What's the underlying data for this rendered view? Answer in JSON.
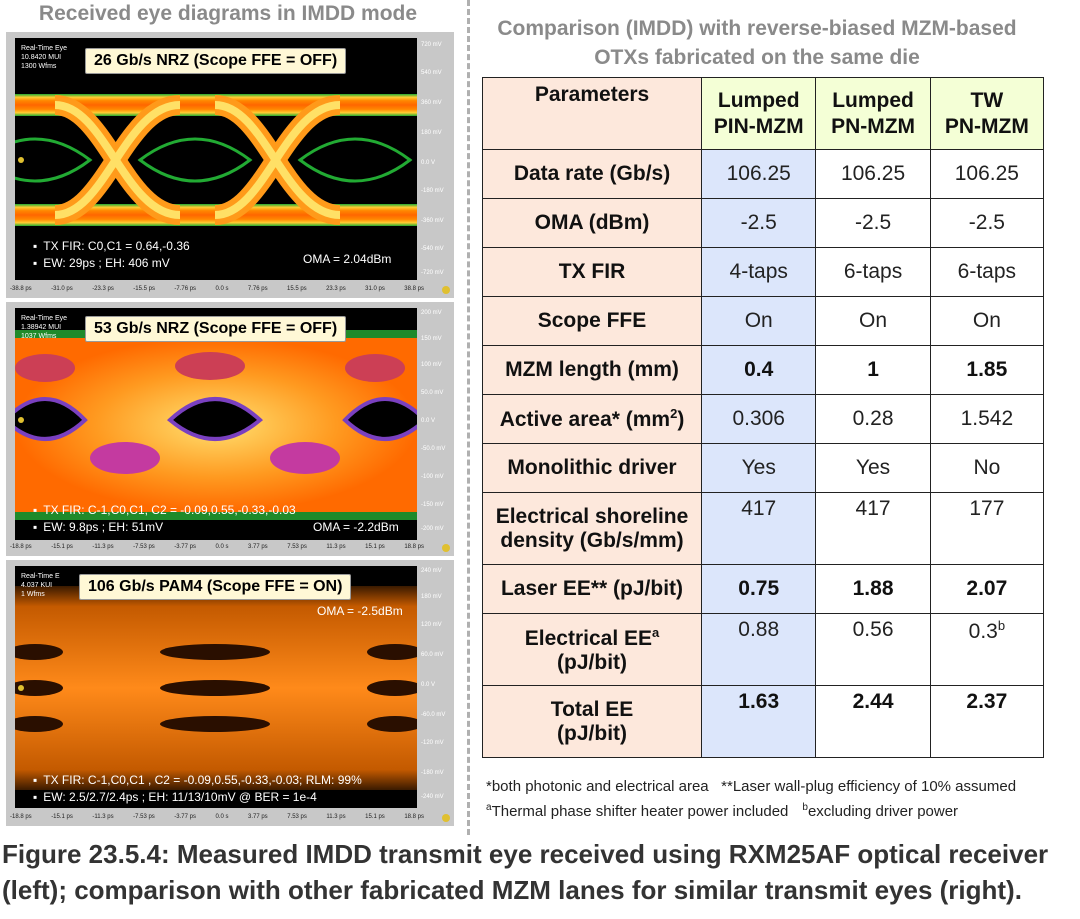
{
  "left": {
    "title": "Received eye diagrams in IMDD mode",
    "eyes": [
      {
        "scope_info": [
          "Real-Time Eye",
          "10.8420 MUI",
          "1300 Wfms"
        ],
        "label": "26 Gb/s NRZ (Scope FFE = OFF)",
        "notes": [
          "TX FIR: C0,C1 = 0.64,-0.36",
          "EW: 29ps ; EH: 406 mV"
        ],
        "oma": "OMA = 2.04dBm",
        "y_ticks": [
          "720 mV",
          "540 mV",
          "360 mV",
          "180 mV",
          "0.0 V",
          "-180 mV",
          "-360 mV",
          "-540 mV",
          "-720 mV"
        ],
        "x_ticks": [
          "-38.8 ps",
          "-31.0 ps",
          "-23.3 ps",
          "-15.5 ps",
          "-7.76 ps",
          "0.0 s",
          "7.76 ps",
          "15.5 ps",
          "23.3 ps",
          "31.0 ps",
          "38.8 ps"
        ]
      },
      {
        "scope_info": [
          "Real-Time Eye",
          "1.38942 MUI",
          "1037 Wfms"
        ],
        "label": "53 Gb/s NRZ (Scope FFE = OFF)",
        "notes": [
          "TX FIR: C-1,C0,C1, C2 = -0.09,0.55,-0.33,-0.03",
          "EW: 9.8ps ; EH: 51mV"
        ],
        "oma": "OMA = -2.2dBm",
        "y_ticks": [
          "200 mV",
          "150 mV",
          "100 mV",
          "50.0 mV",
          "0.0 V",
          "-50.0 mV",
          "-100 mV",
          "-150 mV",
          "-200 mV"
        ],
        "x_ticks": [
          "-18.8 ps",
          "-15.1 ps",
          "-11.3 ps",
          "-7.53 ps",
          "-3.77 ps",
          "0.0 s",
          "3.77 ps",
          "7.53 ps",
          "11.3 ps",
          "15.1 ps",
          "18.8 ps"
        ]
      },
      {
        "scope_info": [
          "Real-Time E",
          "4.037 KUI",
          "1 Wfms"
        ],
        "label": "106 Gb/s PAM4 (Scope FFE = ON)",
        "notes": [
          "TX FIR: C-1,C0,C1 , C2 = -0.09,0.55,-0.33,-0.03; RLM: 99%",
          "EW: 2.5/2.7/2.4ps ; EH: 11/13/10mV @ BER = 1e-4"
        ],
        "oma": "OMA = -2.5dBm",
        "y_ticks": [
          "240 mV",
          "180 mV",
          "120 mV",
          "60.0 mV",
          "0.0 V",
          "-60.0 mV",
          "-120 mV",
          "-180 mV",
          "-240 mV"
        ],
        "x_ticks": [
          "-18.8 ps",
          "-15.1 ps",
          "-11.3 ps",
          "-7.53 ps",
          "-3.77 ps",
          "0.0 s",
          "3.77 ps",
          "7.53 ps",
          "11.3 ps",
          "15.1 ps",
          "18.8 ps"
        ]
      }
    ]
  },
  "right": {
    "title_line1": "Comparison (IMDD) with reverse-biased MZM-based",
    "title_line2": "OTXs fabricated on the same die",
    "table": {
      "param_header": "Parameters",
      "columns": [
        {
          "line1": "Lumped",
          "line2": "PIN-MZM"
        },
        {
          "line1": "Lumped",
          "line2": "PN-MZM"
        },
        {
          "line1": "TW",
          "line2": "PN-MZM"
        }
      ],
      "rows": [
        {
          "param": "Data rate (Gb/s)",
          "values": [
            "106.25",
            "106.25",
            "106.25"
          ],
          "bold": false
        },
        {
          "param": "OMA (dBm)",
          "values": [
            "-2.5",
            "-2.5",
            "-2.5"
          ],
          "bold": false
        },
        {
          "param": "TX FIR",
          "values": [
            "4-taps",
            "6-taps",
            "6-taps"
          ],
          "bold": false
        },
        {
          "param": "Scope FFE",
          "values": [
            "On",
            "On",
            "On"
          ],
          "bold": false
        },
        {
          "param": "MZM length (mm)",
          "values": [
            "0.4",
            "1",
            "1.85"
          ],
          "bold": true
        },
        {
          "param_main": "Active area* (mm",
          "param_sup": "2",
          "param_end": ")",
          "values": [
            "0.306",
            "0.28",
            "1.542"
          ],
          "bold": false
        },
        {
          "param": "Monolithic driver",
          "values": [
            "Yes",
            "Yes",
            "No"
          ],
          "bold": false
        },
        {
          "param_l1": "Electrical shoreline",
          "param_l2": "density (Gb/s/mm)",
          "values": [
            "417",
            "417",
            "177"
          ],
          "bold": false,
          "top": true
        },
        {
          "param": "Laser EE** (pJ/bit)",
          "values": [
            "0.75",
            "1.88",
            "2.07"
          ],
          "bold": true
        },
        {
          "param_l1": "Electrical EE",
          "param_l1_sup": "a",
          "param_l2": "(pJ/bit)",
          "values": [
            "0.88",
            "0.56",
            "0.3"
          ],
          "last_sup": "b",
          "bold": false,
          "top": true
        },
        {
          "param_l1": "Total EE",
          "param_l2": "(pJ/bit)",
          "values": [
            "1.63",
            "2.44",
            "2.37"
          ],
          "bold": true,
          "top": true
        }
      ]
    },
    "footnote1": "*both photonic and electrical area   **Laser wall-plug efficiency of 10% assumed",
    "footnote2_a": "a",
    "footnote2_a_text": "Thermal phase shifter heater power included",
    "footnote2_b": "b",
    "footnote2_b_text": "excluding driver power"
  },
  "caption_line1": "Figure 23.5.4: Measured IMDD transmit eye received using RXM25AF optical receiver",
  "caption_line2": "(left); comparison with other fabricated MZM lanes for similar transmit eyes (right)."
}
